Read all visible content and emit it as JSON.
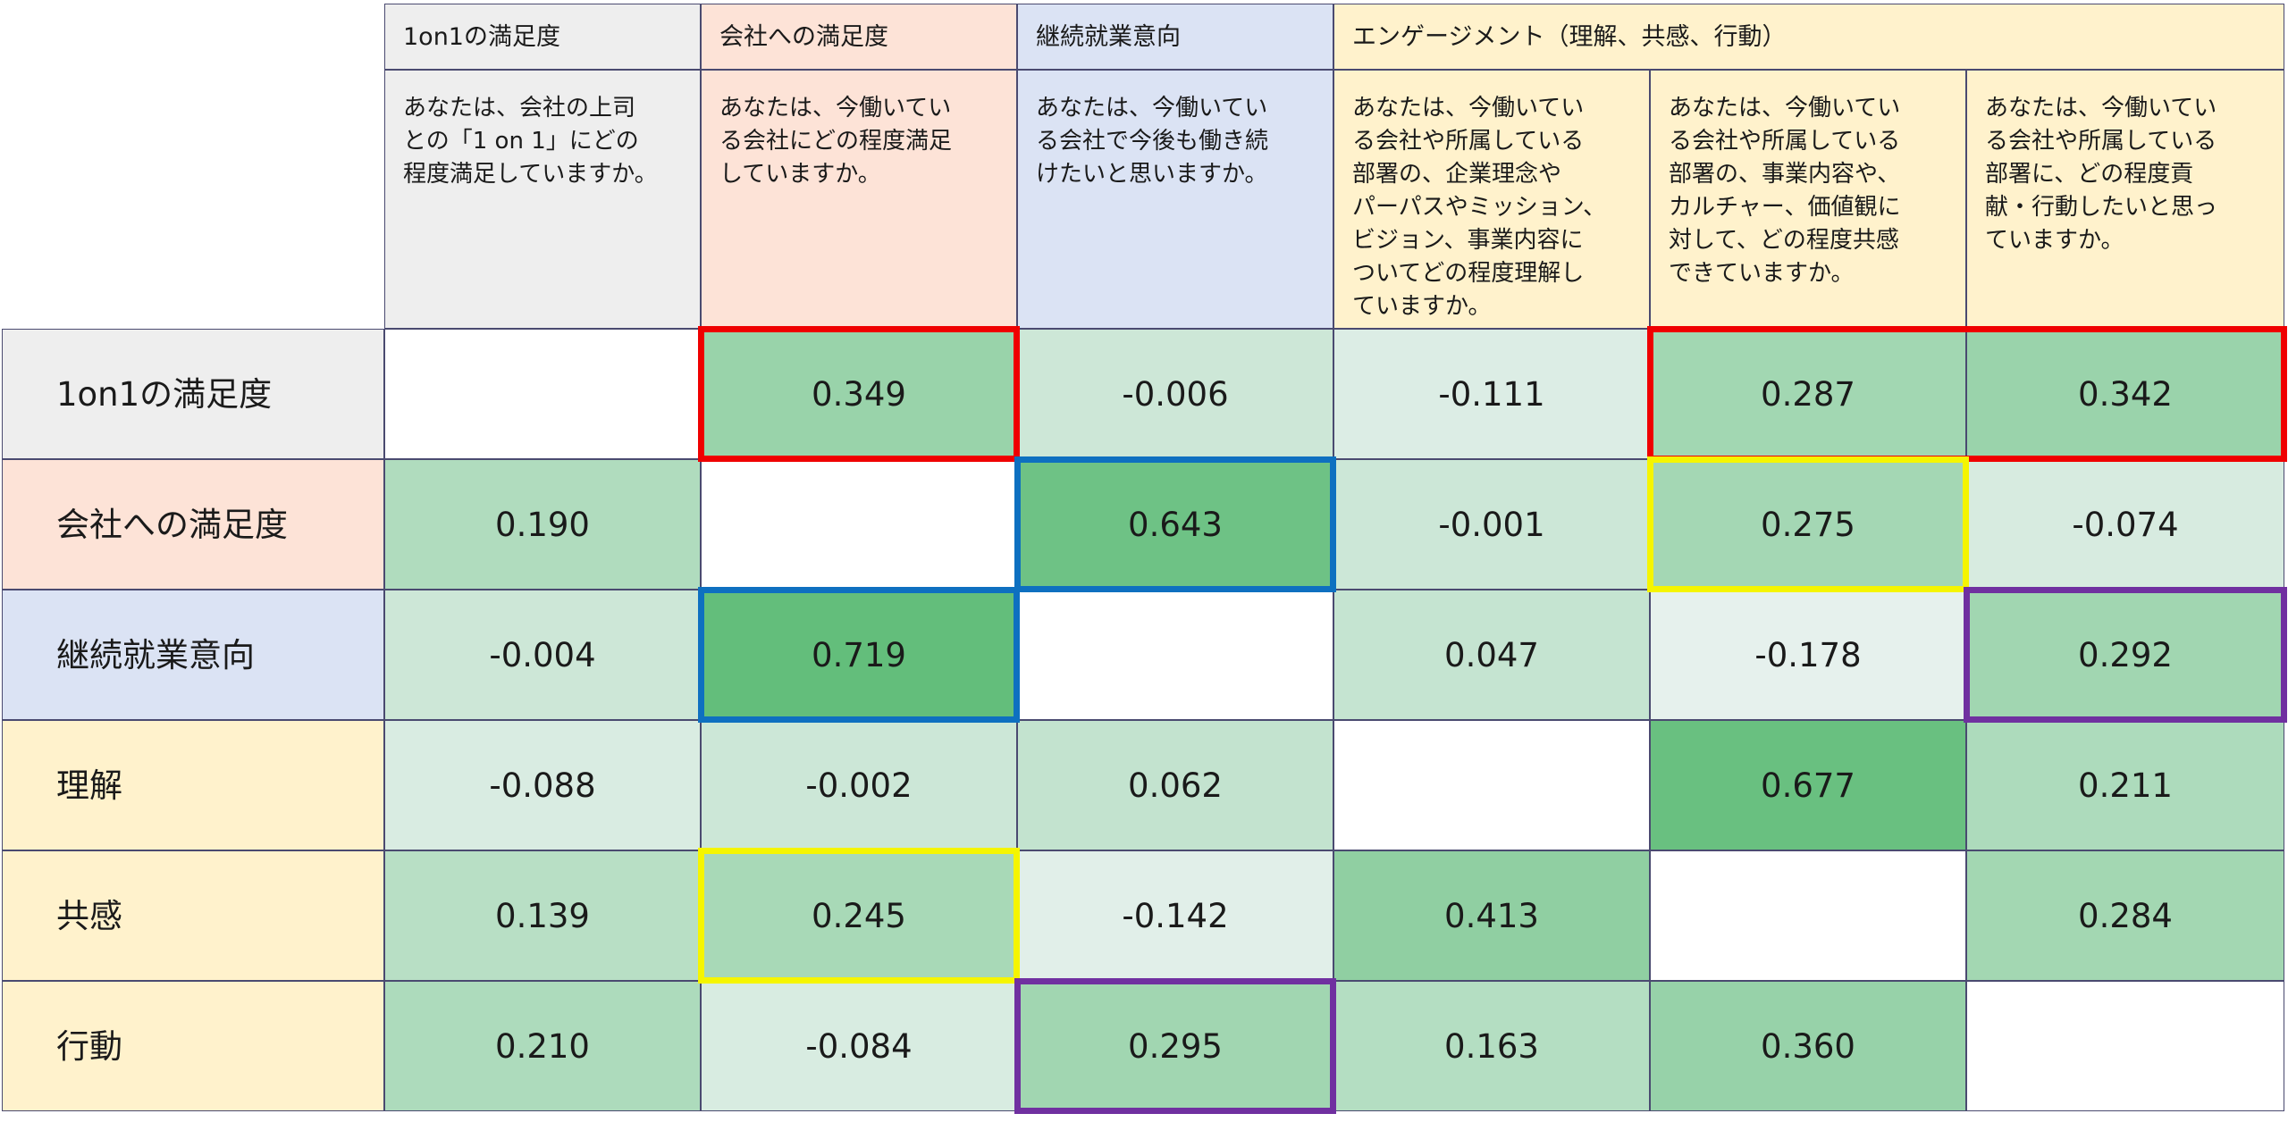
{
  "colors": {
    "header_gray": "#eeeeee",
    "header_pink": "#fde3d7",
    "header_blue": "#dbe3f4",
    "header_cream": "#fff2cc",
    "highlight_red": "#ef0000",
    "highlight_blue": "#0e70c0",
    "highlight_yellow": "#f5f500",
    "highlight_purple": "#7030a0"
  },
  "column_titles": {
    "c0": "1on1の満足度",
    "c1": "会社への満足度",
    "c2": "継続就業意向",
    "engagement": "エンゲージメント（理解、共感、行動）"
  },
  "questions": [
    "あなたは、会社の上司\nとの「1 on 1」にどの\n程度満足していますか。",
    "あなたは、今働いてい\nる会社にどの程度満足\nしていますか。",
    "あなたは、今働いてい\nる会社で今後も働き続\nけたいと思いますか。",
    "あなたは、今働いてい\nる会社や所属している\n部署の、企業理念や\nパーパスやミッション、\nビジョン、事業内容に\nついてどの程度理解し\nていますか。",
    "あなたは、今働いてい\nる会社や所属している\n部署の、事業内容や、\nカルチャー、価値観に\n対して、どの程度共感\nできていますか。",
    "あなたは、今働いてい\nる会社や所属している\n部署に、どの程度貢\n献・行動したいと思っ\nていますか。"
  ],
  "chart_data": {
    "type": "heatmap",
    "rows": [
      "1on1の満足度",
      "会社への満足度",
      "継続就業意向",
      "理解",
      "共感",
      "行動"
    ],
    "columns": [
      "1on1の満足度",
      "会社への満足度",
      "継続就業意向",
      "理解",
      "共感",
      "行動"
    ],
    "values": [
      [
        null,
        0.349,
        -0.006,
        -0.111,
        0.287,
        0.342
      ],
      [
        0.19,
        null,
        0.643,
        -0.001,
        0.275,
        -0.074
      ],
      [
        -0.004,
        0.719,
        null,
        0.047,
        -0.178,
        0.292
      ],
      [
        -0.088,
        -0.002,
        0.062,
        null,
        0.677,
        0.211
      ],
      [
        0.139,
        0.245,
        -0.142,
        0.413,
        null,
        0.284
      ],
      [
        0.21,
        -0.084,
        0.295,
        0.163,
        0.36,
        null
      ]
    ],
    "labels": [
      [
        "",
        "0.349",
        "-0.006",
        "-0.111",
        "0.287",
        "0.342"
      ],
      [
        "0.190",
        "",
        "0.643",
        "-0.001",
        "0.275",
        "-0.074"
      ],
      [
        "-0.004",
        "0.719",
        "",
        "0.047",
        "-0.178",
        "0.292"
      ],
      [
        "-0.088",
        "-0.002",
        "0.062",
        "",
        "0.677",
        "0.211"
      ],
      [
        "0.139",
        "0.245",
        "-0.142",
        "0.413",
        "",
        "0.284"
      ],
      [
        "0.210",
        "-0.084",
        "0.295",
        "0.163",
        "0.360",
        ""
      ]
    ],
    "color_scale": {
      "low": "#f8f8fd",
      "high": "#63be7b",
      "min": -0.178,
      "max": 0.719
    },
    "highlights": [
      {
        "color": "highlight_red",
        "row": 0,
        "col_start": 1,
        "col_end": 1
      },
      {
        "color": "highlight_red",
        "row": 0,
        "col_start": 4,
        "col_end": 5
      },
      {
        "color": "highlight_blue",
        "row": 1,
        "col_start": 2,
        "col_end": 2
      },
      {
        "color": "highlight_blue",
        "row": 2,
        "col_start": 1,
        "col_end": 1
      },
      {
        "color": "highlight_yellow",
        "row": 1,
        "col_start": 4,
        "col_end": 4
      },
      {
        "color": "highlight_yellow",
        "row": 4,
        "col_start": 1,
        "col_end": 1
      },
      {
        "color": "highlight_purple",
        "row": 2,
        "col_start": 5,
        "col_end": 5
      },
      {
        "color": "highlight_purple",
        "row": 5,
        "col_start": 2,
        "col_end": 2
      }
    ]
  }
}
